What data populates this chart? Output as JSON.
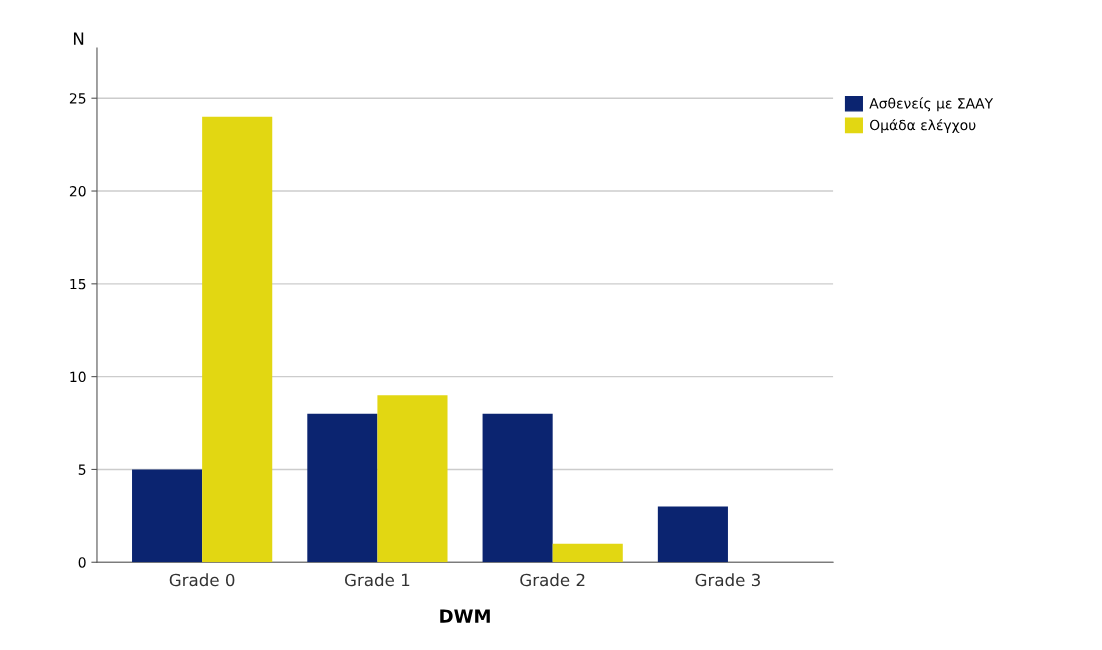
{
  "chart_data": {
    "type": "bar",
    "xlabel": "DWM",
    "ylabel": "N",
    "categories": [
      "Grade 0",
      "Grade 1",
      "Grade 2",
      "Grade 3"
    ],
    "series": [
      {
        "name": "Ασθενείς με ΣΑΑΥ",
        "color": "#0b2470",
        "values": [
          5,
          8,
          8,
          3
        ]
      },
      {
        "name": "Ομάδα ελέγχου",
        "color": "#e2d712",
        "values": [
          24,
          9,
          1,
          0
        ]
      }
    ],
    "ylim": [
      0,
      27.7
    ],
    "yticks": [
      0,
      5,
      10,
      15,
      20,
      25
    ],
    "grid": "y",
    "legend": "top right"
  }
}
